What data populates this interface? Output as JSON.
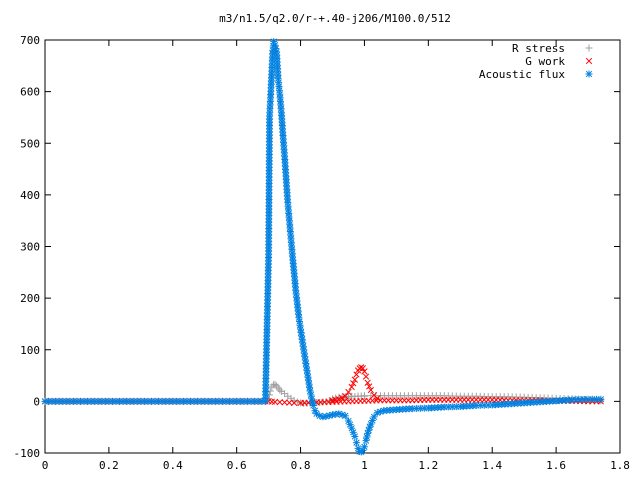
{
  "chart_data": {
    "type": "scatter",
    "title": "m3/n1.5/q2.0/r-+.40-j206/M100.0/512",
    "xlabel": "",
    "ylabel": "",
    "xlim": [
      0,
      1.8
    ],
    "ylim": [
      -100,
      700
    ],
    "xticks": [
      "0",
      "0.2",
      "0.4",
      "0.6",
      "0.8",
      "1",
      "1.2",
      "1.4",
      "1.6",
      "1.8"
    ],
    "yticks": [
      "-100",
      "0",
      "100",
      "200",
      "300",
      "400",
      "500",
      "600",
      "700"
    ],
    "xtick_values": [
      0,
      0.2,
      0.4,
      0.6,
      0.8,
      1.0,
      1.2,
      1.4,
      1.6,
      1.8
    ],
    "ytick_values": [
      -100,
      0,
      100,
      200,
      300,
      400,
      500,
      600,
      700
    ],
    "grid": false,
    "legend_position": "top-right",
    "series": [
      {
        "name": "R stress",
        "marker": "plus",
        "color": "#a0a0a0",
        "points": [
          [
            0.0,
            0
          ],
          [
            0.1,
            0
          ],
          [
            0.2,
            0
          ],
          [
            0.3,
            0
          ],
          [
            0.4,
            0
          ],
          [
            0.5,
            0
          ],
          [
            0.6,
            0
          ],
          [
            0.69,
            0
          ],
          [
            0.7,
            5
          ],
          [
            0.705,
            20
          ],
          [
            0.71,
            28
          ],
          [
            0.715,
            32
          ],
          [
            0.72,
            33
          ],
          [
            0.725,
            30
          ],
          [
            0.73,
            26
          ],
          [
            0.735,
            22
          ],
          [
            0.74,
            19
          ],
          [
            0.75,
            15
          ],
          [
            0.76,
            10
          ],
          [
            0.77,
            6
          ],
          [
            0.78,
            2
          ],
          [
            0.79,
            -1
          ],
          [
            0.8,
            -3
          ],
          [
            0.81,
            -4
          ],
          [
            0.82,
            -4
          ],
          [
            0.84,
            -3
          ],
          [
            0.86,
            -2
          ],
          [
            0.88,
            0
          ],
          [
            0.9,
            3
          ],
          [
            0.92,
            6
          ],
          [
            0.94,
            8
          ],
          [
            0.96,
            9
          ],
          [
            0.98,
            10
          ],
          [
            1.0,
            11
          ],
          [
            1.02,
            11
          ],
          [
            1.05,
            11
          ],
          [
            1.1,
            11
          ],
          [
            1.15,
            11
          ],
          [
            1.2,
            11
          ],
          [
            1.25,
            11
          ],
          [
            1.3,
            10
          ],
          [
            1.35,
            10
          ],
          [
            1.4,
            9
          ],
          [
            1.45,
            9
          ],
          [
            1.5,
            8
          ],
          [
            1.55,
            7
          ],
          [
            1.6,
            6
          ],
          [
            1.65,
            5
          ],
          [
            1.7,
            3
          ],
          [
            1.74,
            1
          ]
        ]
      },
      {
        "name": "G work",
        "marker": "cross",
        "color": "#ff0000",
        "points": [
          [
            0.0,
            0
          ],
          [
            0.1,
            0
          ],
          [
            0.2,
            0
          ],
          [
            0.3,
            0
          ],
          [
            0.4,
            0
          ],
          [
            0.5,
            0
          ],
          [
            0.6,
            0
          ],
          [
            0.69,
            0
          ],
          [
            0.7,
            0
          ],
          [
            0.72,
            -1
          ],
          [
            0.75,
            -2
          ],
          [
            0.78,
            -3
          ],
          [
            0.8,
            -3
          ],
          [
            0.85,
            -2
          ],
          [
            0.9,
            -1
          ],
          [
            0.95,
            0
          ],
          [
            1.0,
            1
          ],
          [
            1.05,
            2
          ],
          [
            1.1,
            2
          ],
          [
            1.15,
            2
          ],
          [
            1.2,
            3
          ],
          [
            1.25,
            3
          ],
          [
            1.3,
            3
          ],
          [
            1.35,
            3
          ],
          [
            1.4,
            3
          ],
          [
            1.45,
            2
          ],
          [
            1.5,
            2
          ],
          [
            1.55,
            2
          ],
          [
            1.6,
            1
          ],
          [
            1.65,
            1
          ],
          [
            1.7,
            0
          ],
          [
            1.74,
            0
          ]
        ]
      },
      {
        "name": "Acoustic flux",
        "marker": "star",
        "color": "#0080e0",
        "points": [
          [
            0.0,
            0
          ],
          [
            0.1,
            0
          ],
          [
            0.2,
            0
          ],
          [
            0.3,
            0
          ],
          [
            0.4,
            0
          ],
          [
            0.5,
            0
          ],
          [
            0.6,
            0
          ],
          [
            0.69,
            0
          ],
          [
            0.7,
            285
          ],
          [
            0.703,
            553
          ],
          [
            0.706,
            588
          ],
          [
            0.71,
            640
          ],
          [
            0.713,
            680
          ],
          [
            0.716,
            697
          ],
          [
            0.72,
            690
          ],
          [
            0.725,
            677
          ],
          [
            0.73,
            625
          ],
          [
            0.735,
            595
          ],
          [
            0.74,
            560
          ],
          [
            0.745,
            515
          ],
          [
            0.75,
            475
          ],
          [
            0.755,
            430
          ],
          [
            0.76,
            385
          ],
          [
            0.765,
            350
          ],
          [
            0.77,
            315
          ],
          [
            0.775,
            280
          ],
          [
            0.78,
            248
          ],
          [
            0.785,
            215
          ],
          [
            0.79,
            188
          ],
          [
            0.795,
            162
          ],
          [
            0.8,
            140
          ],
          [
            0.805,
            120
          ],
          [
            0.81,
            100
          ],
          [
            0.815,
            80
          ],
          [
            0.82,
            60
          ],
          [
            0.825,
            40
          ],
          [
            0.83,
            20
          ],
          [
            0.835,
            5
          ],
          [
            0.84,
            -8
          ],
          [
            0.845,
            -18
          ],
          [
            0.85,
            -24
          ],
          [
            0.86,
            -28
          ],
          [
            0.87,
            -30
          ],
          [
            0.88,
            -29
          ],
          [
            0.9,
            -26
          ],
          [
            0.92,
            -24
          ],
          [
            0.94,
            -28
          ],
          [
            0.95,
            -38
          ],
          [
            0.96,
            -52
          ],
          [
            0.97,
            -68
          ],
          [
            0.975,
            -80
          ],
          [
            0.98,
            -91
          ],
          [
            0.985,
            -97
          ],
          [
            0.99,
            -98
          ],
          [
            0.995,
            -95
          ],
          [
            1.0,
            -88
          ],
          [
            1.005,
            -76
          ],
          [
            1.01,
            -62
          ],
          [
            1.02,
            -44
          ],
          [
            1.03,
            -30
          ],
          [
            1.04,
            -22
          ],
          [
            1.06,
            -18
          ],
          [
            1.1,
            -16
          ],
          [
            1.15,
            -14
          ],
          [
            1.2,
            -13
          ],
          [
            1.25,
            -11
          ],
          [
            1.3,
            -10
          ],
          [
            1.35,
            -8
          ],
          [
            1.4,
            -7
          ],
          [
            1.45,
            -5
          ],
          [
            1.5,
            -3
          ],
          [
            1.55,
            -1
          ],
          [
            1.6,
            1
          ],
          [
            1.65,
            3
          ],
          [
            1.7,
            4
          ],
          [
            1.74,
            4
          ]
        ]
      },
      {
        "name": "R stress",
        "marker": "plus",
        "color": "#a0a0a0",
        "legend": false,
        "points": [
          [
            0.9,
            5
          ],
          [
            0.92,
            8
          ],
          [
            0.94,
            9
          ],
          [
            0.96,
            10
          ],
          [
            0.98,
            10
          ],
          [
            1.0,
            10
          ]
        ]
      },
      {
        "name": "G work",
        "marker": "cross",
        "color": "#ff0000",
        "legend": false,
        "points": [
          [
            0.9,
            2
          ],
          [
            0.92,
            4
          ],
          [
            0.94,
            10
          ],
          [
            0.95,
            18
          ],
          [
            0.96,
            28
          ],
          [
            0.97,
            42
          ],
          [
            0.975,
            52
          ],
          [
            0.98,
            60
          ],
          [
            0.985,
            64
          ],
          [
            0.99,
            66
          ],
          [
            0.995,
            64
          ],
          [
            1.0,
            58
          ],
          [
            1.005,
            48
          ],
          [
            1.01,
            36
          ],
          [
            1.02,
            22
          ],
          [
            1.03,
            12
          ],
          [
            1.04,
            6
          ]
        ]
      }
    ]
  },
  "legend": [
    {
      "label": "R stress",
      "marker": "plus",
      "color": "#a0a0a0"
    },
    {
      "label": "G work",
      "marker": "cross",
      "color": "#ff0000"
    },
    {
      "label": "Acoustic flux",
      "marker": "star",
      "color": "#0080e0"
    }
  ]
}
